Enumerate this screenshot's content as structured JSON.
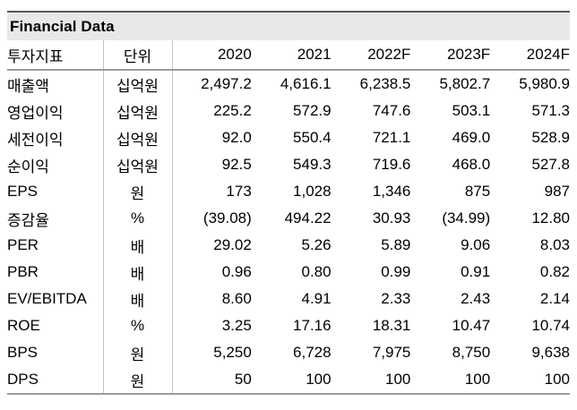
{
  "title": "Financial Data",
  "colors": {
    "title_bg": "#e8e8e8",
    "top_rule": "#595959",
    "mid_rule": "#9b9b9b",
    "bottom_rule": "#9b9b9b",
    "col_divider": "#c4c4c4",
    "text": "#000000"
  },
  "table": {
    "headers": [
      "투자지표",
      "단위",
      "2020",
      "2021",
      "2022F",
      "2023F",
      "2024F"
    ],
    "rows": [
      {
        "label": "매출액",
        "unit": "십억원",
        "values": [
          "2,497.2",
          "4,616.1",
          "6,238.5",
          "5,802.7",
          "5,980.9"
        ]
      },
      {
        "label": "영업이익",
        "unit": "십억원",
        "values": [
          "225.2",
          "572.9",
          "747.6",
          "503.1",
          "571.3"
        ]
      },
      {
        "label": "세전이익",
        "unit": "십억원",
        "values": [
          "92.0",
          "550.4",
          "721.1",
          "469.0",
          "528.9"
        ]
      },
      {
        "label": "순이익",
        "unit": "십억원",
        "values": [
          "92.5",
          "549.3",
          "719.6",
          "468.0",
          "527.8"
        ]
      },
      {
        "label": "EPS",
        "unit": "원",
        "values": [
          "173",
          "1,028",
          "1,346",
          "875",
          "987"
        ]
      },
      {
        "label": "증감율",
        "unit": "%",
        "values": [
          "(39.08)",
          "494.22",
          "30.93",
          "(34.99)",
          "12.80"
        ]
      },
      {
        "label": "PER",
        "unit": "배",
        "values": [
          "29.02",
          "5.26",
          "5.89",
          "9.06",
          "8.03"
        ]
      },
      {
        "label": "PBR",
        "unit": "배",
        "values": [
          "0.96",
          "0.80",
          "0.99",
          "0.91",
          "0.82"
        ]
      },
      {
        "label": "EV/EBITDA",
        "unit": "배",
        "values": [
          "8.60",
          "4.91",
          "2.33",
          "2.43",
          "2.14"
        ]
      },
      {
        "label": "ROE",
        "unit": "%",
        "values": [
          "3.25",
          "17.16",
          "18.31",
          "10.47",
          "10.74"
        ]
      },
      {
        "label": "BPS",
        "unit": "원",
        "values": [
          "5,250",
          "6,728",
          "7,975",
          "8,750",
          "9,638"
        ]
      },
      {
        "label": "DPS",
        "unit": "원",
        "values": [
          "50",
          "100",
          "100",
          "100",
          "100"
        ]
      }
    ]
  }
}
